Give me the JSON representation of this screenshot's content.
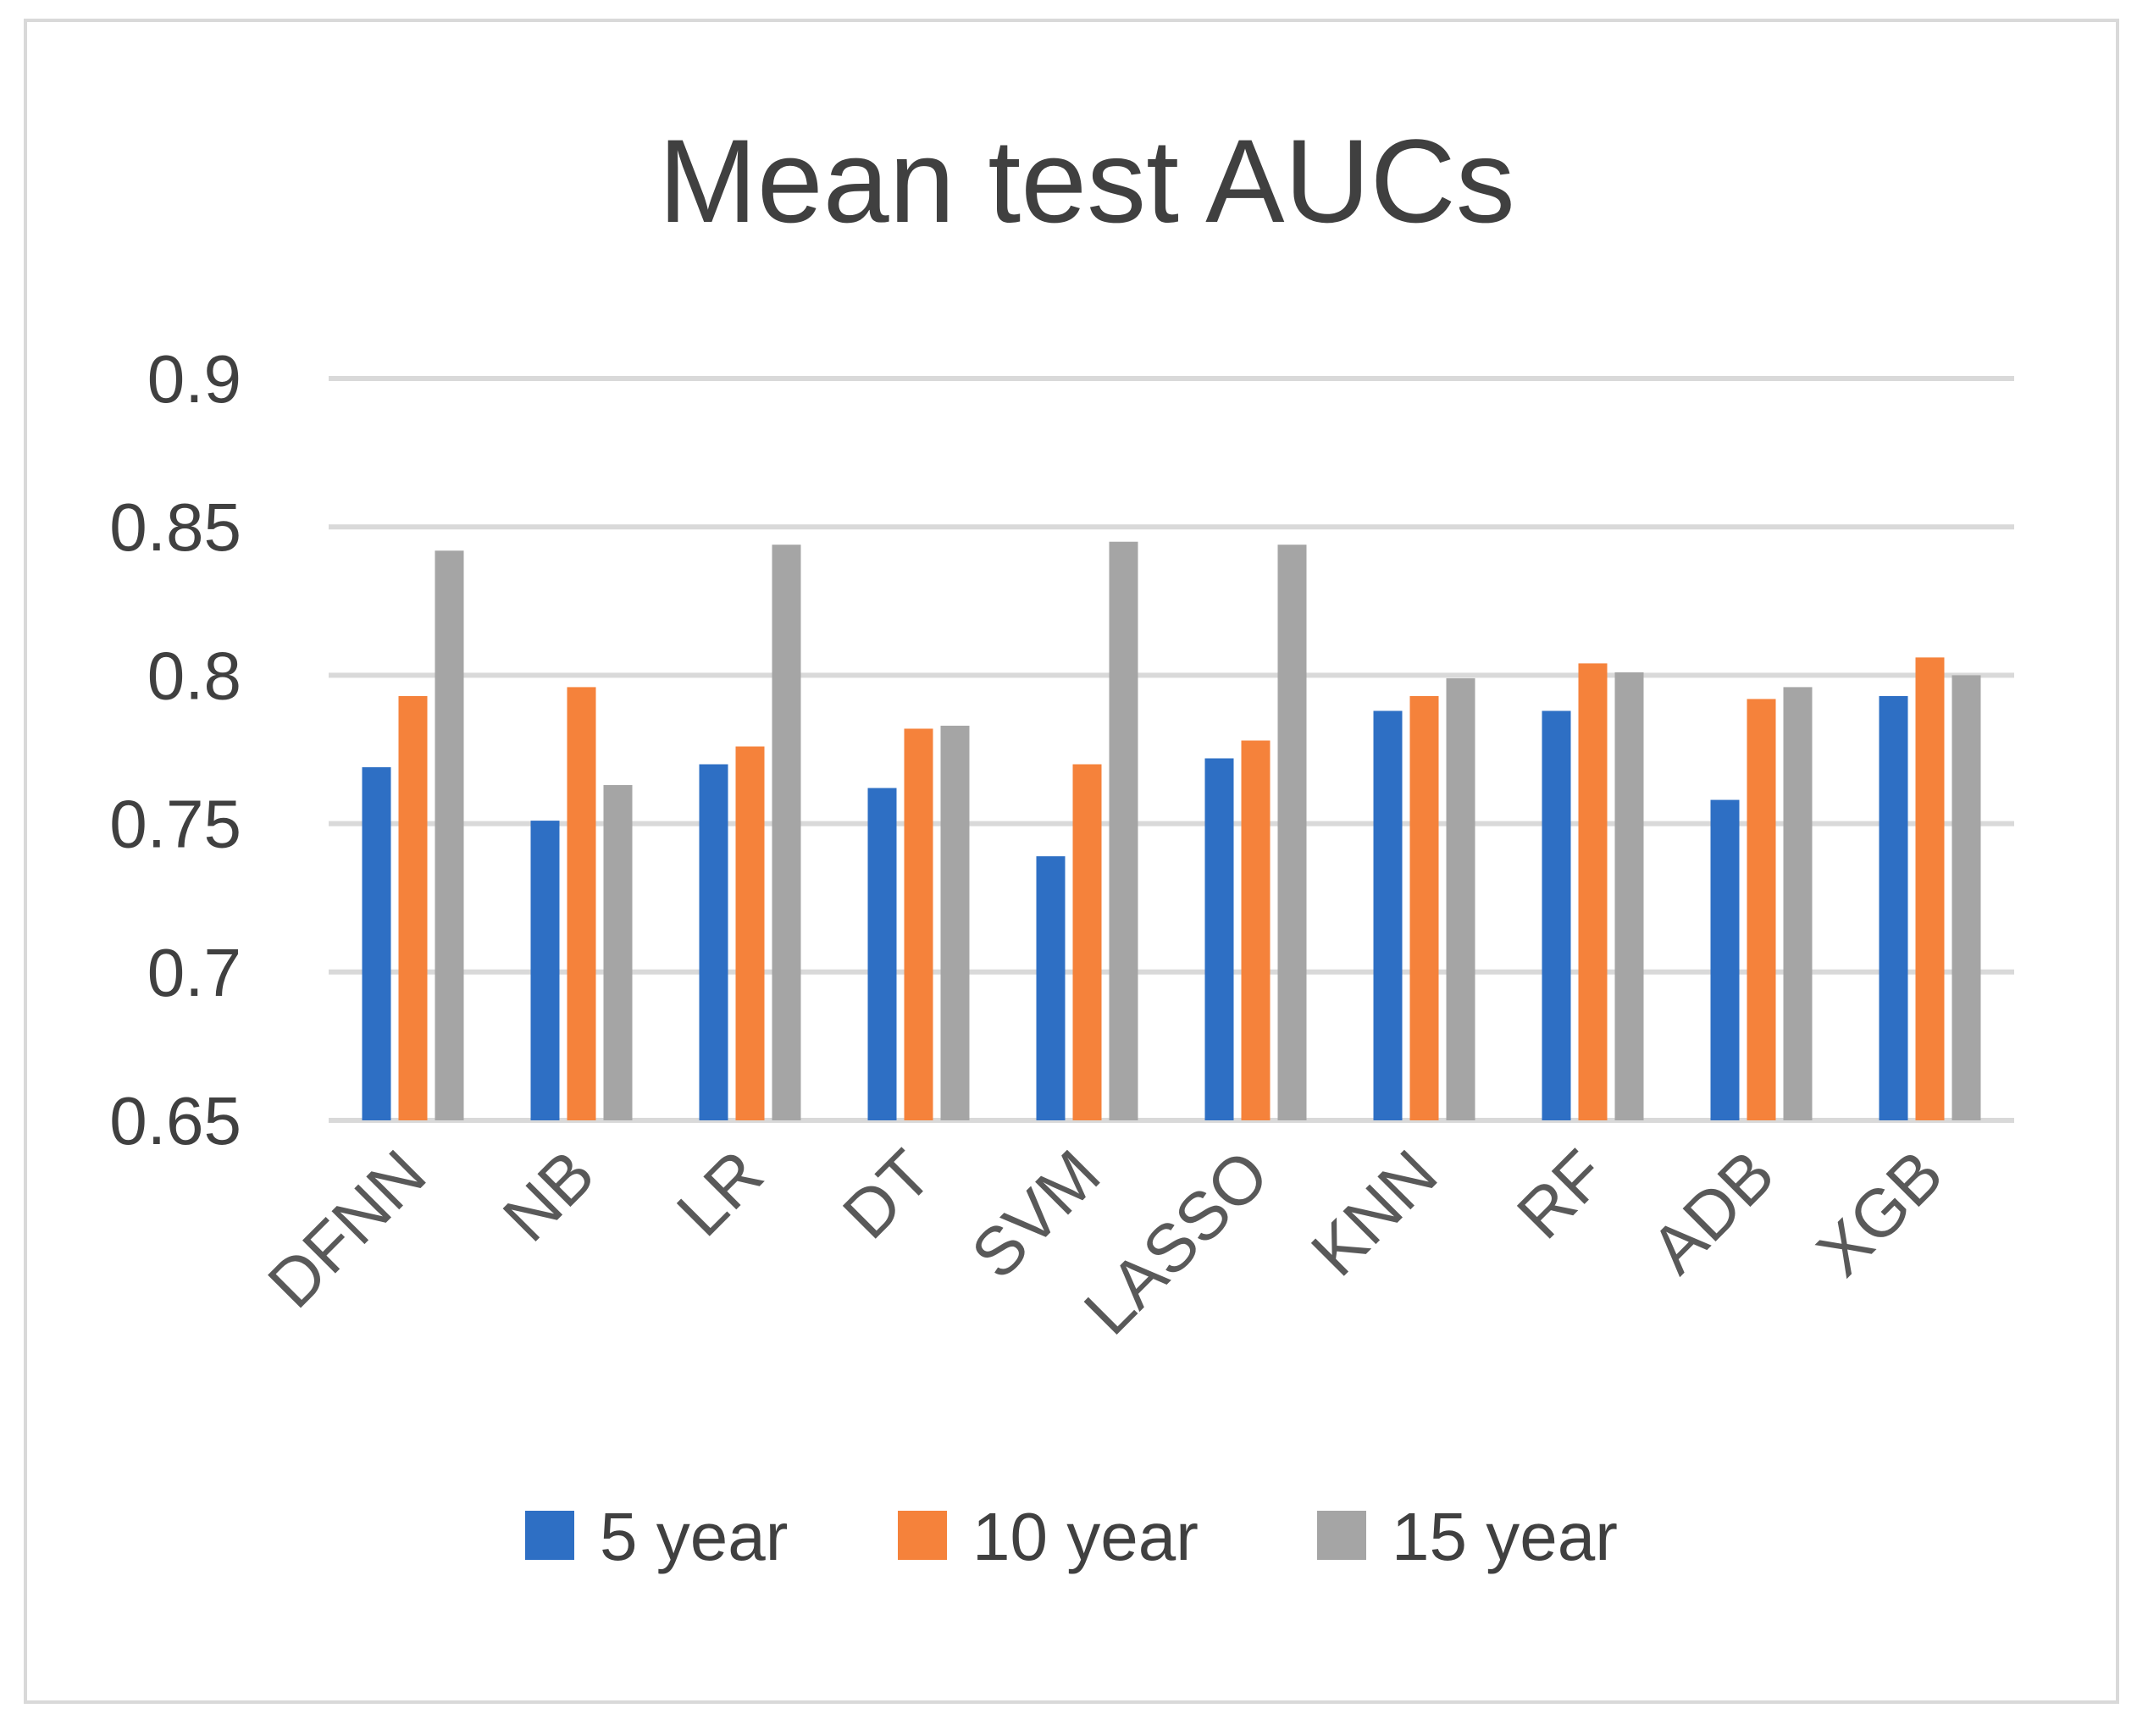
{
  "chart_data": {
    "type": "bar",
    "title": "Mean test AUCs",
    "xlabel": "",
    "ylabel": "",
    "ylim": [
      0.65,
      0.9
    ],
    "yticks": [
      "0.65",
      "0.7",
      "0.75",
      "0.8",
      "0.85",
      "0.9"
    ],
    "grid": true,
    "legend_position": "bottom",
    "categories": [
      "DFNN",
      "NB",
      "LR",
      "DT",
      "SVM",
      "LASSO",
      "KNN",
      "RF",
      "ADB",
      "XGB"
    ],
    "series": [
      {
        "name": "5 year",
        "color": "#2e6fc4",
        "values": [
          0.769,
          0.751,
          0.77,
          0.762,
          0.739,
          0.772,
          0.788,
          0.788,
          0.758,
          0.793
        ]
      },
      {
        "name": "10 year",
        "color": "#f5823b",
        "values": [
          0.793,
          0.796,
          0.776,
          0.782,
          0.77,
          0.778,
          0.793,
          0.804,
          0.792,
          0.806
        ]
      },
      {
        "name": "15 year",
        "color": "#a5a5a5",
        "values": [
          0.842,
          0.763,
          0.844,
          0.783,
          0.845,
          0.844,
          0.799,
          0.801,
          0.796,
          0.8
        ]
      }
    ]
  }
}
